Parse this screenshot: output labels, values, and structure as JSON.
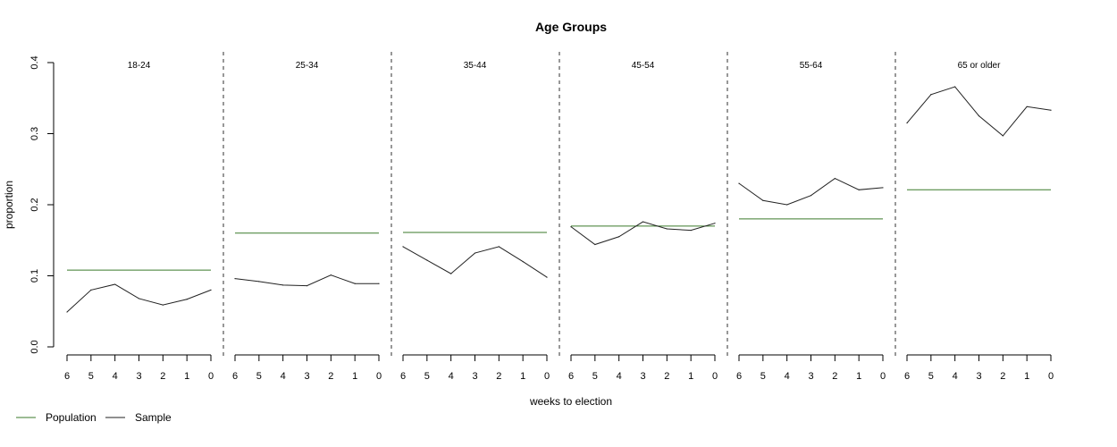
{
  "chart_data": {
    "type": "line",
    "title": "Age Groups",
    "xlabel": "weeks to election",
    "ylabel": "proportion",
    "ylim": [
      0,
      0.4
    ],
    "y_ticks": [
      "0.0",
      "0.1",
      "0.2",
      "0.3",
      "0.4"
    ],
    "x": [
      6,
      5,
      4,
      3,
      2,
      1,
      0
    ],
    "x_ticks": [
      "6",
      "5",
      "4",
      "3",
      "2",
      "1",
      "0"
    ],
    "grid": false,
    "legend": {
      "placement": "bottom-left",
      "entries": [
        {
          "label": "Population",
          "color": "#3a7a2a"
        },
        {
          "label": "Sample",
          "color": "#222222"
        }
      ]
    },
    "panels": [
      {
        "title": "18-24",
        "population": 0.108,
        "sample": [
          0.049,
          0.08,
          0.088,
          0.068,
          0.059,
          0.067,
          0.08
        ]
      },
      {
        "title": "25-34",
        "population": 0.16,
        "sample": [
          0.096,
          0.092,
          0.087,
          0.086,
          0.101,
          0.089,
          0.089
        ]
      },
      {
        "title": "35-44",
        "population": 0.161,
        "sample": [
          0.141,
          0.122,
          0.103,
          0.132,
          0.141,
          0.12,
          0.098
        ]
      },
      {
        "title": "45-54",
        "population": 0.17,
        "sample": [
          0.169,
          0.144,
          0.155,
          0.176,
          0.166,
          0.164,
          0.174
        ]
      },
      {
        "title": "55-64",
        "population": 0.18,
        "sample": [
          0.23,
          0.206,
          0.2,
          0.213,
          0.237,
          0.221,
          0.224
        ]
      },
      {
        "title": "65 or older",
        "population": 0.221,
        "sample": [
          0.315,
          0.355,
          0.366,
          0.325,
          0.297,
          0.338,
          0.333
        ]
      }
    ]
  }
}
